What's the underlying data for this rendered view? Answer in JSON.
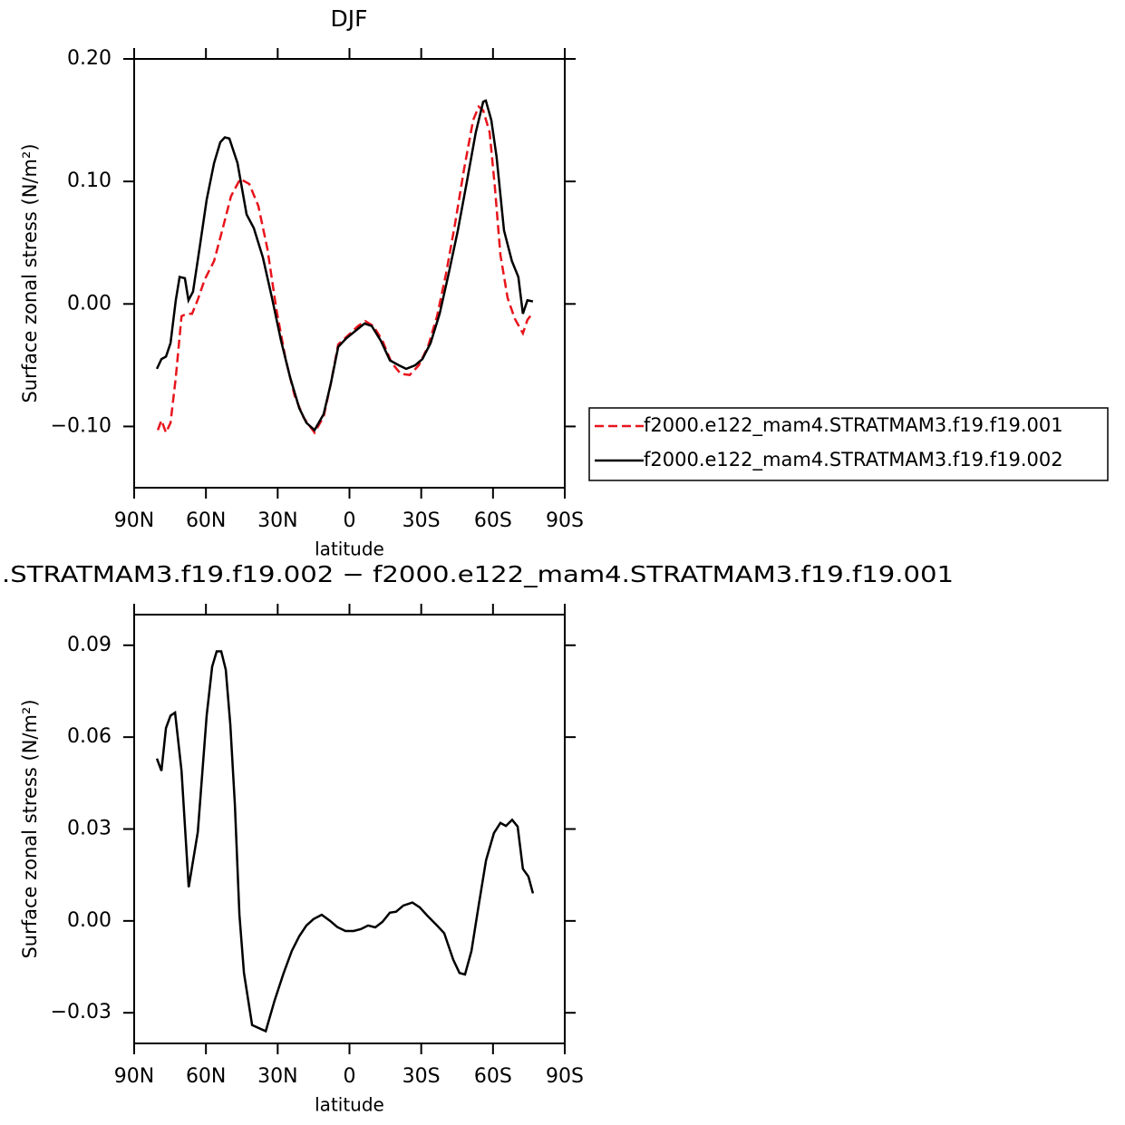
{
  "chart_data": [
    {
      "type": "line",
      "title": "DJF",
      "xlabel": "latitude",
      "ylabel": "Surface zonal stress (N/m²)",
      "xlim": [
        90,
        -90
      ],
      "xticks": [
        {
          "value": 90,
          "label": "90N"
        },
        {
          "value": 60,
          "label": "60N"
        },
        {
          "value": 30,
          "label": "30N"
        },
        0,
        {
          "value": -30,
          "label": "30S"
        },
        {
          "value": -60,
          "label": "60S"
        },
        {
          "value": -90,
          "label": "90S"
        }
      ],
      "ylim": [
        -0.15,
        0.2
      ],
      "yticks": [
        {
          "value": -0.1,
          "label": "−0.10"
        },
        {
          "value": 0,
          "label": "0.00"
        },
        {
          "value": 0.1,
          "label": "0.10"
        },
        {
          "value": 0.2,
          "label": "0.20"
        }
      ],
      "legend": "right",
      "series": [
        {
          "name": "f2000.e122_mam4.STRATMAM3.f19.f19.001",
          "color": "#e8141c",
          "line_style": "dashed",
          "x": [
            80.1,
            78.6,
            76.7,
            74.8,
            72.6,
            70.2,
            68,
            65.8,
            63.5,
            60.5,
            56.6,
            53.2,
            49.5,
            45.7,
            41.9,
            38.1,
            34.3,
            30.5,
            26.7,
            22.9,
            19.1,
            14.6,
            10.8,
            7.8,
            4.7,
            0.2,
            -3.6,
            -6.6,
            -10,
            -13.8,
            -17.6,
            -21.4,
            -25.2,
            -29,
            -32.8,
            -36.6,
            -40.4,
            -44.1,
            -47.9,
            -51.7,
            -54,
            -55.9,
            -58.6,
            -60.8,
            -63.1,
            -66.1,
            -69.1,
            -72.5,
            -74.4,
            -76.7
          ],
          "values": [
            -0.103,
            -0.095,
            -0.105,
            -0.097,
            -0.06,
            -0.01,
            -0.008,
            -0.008,
            0.003,
            0.02,
            0.035,
            0.06,
            0.088,
            0.102,
            0.098,
            0.08,
            0.045,
            -0.005,
            -0.045,
            -0.075,
            -0.093,
            -0.105,
            -0.092,
            -0.065,
            -0.033,
            -0.025,
            -0.018,
            -0.014,
            -0.018,
            -0.03,
            -0.048,
            -0.057,
            -0.058,
            -0.05,
            -0.035,
            -0.01,
            0.025,
            0.065,
            0.11,
            0.15,
            0.161,
            0.158,
            0.14,
            0.095,
            0.04,
            0.005,
            -0.012,
            -0.024,
            -0.013,
            -0.007
          ]
        },
        {
          "name": "f2000.e122_mam4.STRATMAM3.f19.f19.002",
          "color": "#000000",
          "line_style": "solid",
          "x": [
            80.5,
            78.6,
            76.7,
            74.8,
            72.6,
            71,
            68.8,
            67.3,
            65.4,
            62.7,
            59.7,
            56.6,
            54,
            52.1,
            50.2,
            46.8,
            43,
            40,
            36.2,
            32.4,
            28.6,
            24.8,
            21,
            18,
            14.6,
            10.8,
            7.8,
            4.7,
            1.3,
            -2.5,
            -6.3,
            -9.3,
            -13.1,
            -16.9,
            -20.6,
            -23.7,
            -27.5,
            -30.5,
            -33.9,
            -37.7,
            -41.5,
            -45.3,
            -49.1,
            -52.8,
            -55.9,
            -57,
            -59.3,
            -61.5,
            -64.6,
            -67.9,
            -70.6,
            -72.5,
            -74.4,
            -76.7
          ],
          "values": [
            -0.053,
            -0.045,
            -0.043,
            -0.032,
            0.003,
            0.022,
            0.021,
            0.003,
            0.01,
            0.045,
            0.085,
            0.115,
            0.132,
            0.136,
            0.135,
            0.115,
            0.073,
            0.062,
            0.038,
            0.005,
            -0.03,
            -0.06,
            -0.085,
            -0.097,
            -0.103,
            -0.09,
            -0.065,
            -0.035,
            -0.028,
            -0.022,
            -0.016,
            -0.018,
            -0.03,
            -0.046,
            -0.05,
            -0.053,
            -0.05,
            -0.045,
            -0.032,
            -0.008,
            0.025,
            0.06,
            0.1,
            0.14,
            0.165,
            0.166,
            0.15,
            0.12,
            0.06,
            0.035,
            0.022,
            -0.008,
            0.003,
            0.002
          ]
        }
      ]
    },
    {
      "type": "line",
      "title": ".STRATMAM3.f19.f19.002 − f2000.e122_mam4.STRATMAM3.f19.f19.001",
      "xlabel": "latitude",
      "ylabel": "Surface zonal stress (N/m²)",
      "xlim": [
        90,
        -90
      ],
      "xticks": [
        {
          "value": 90,
          "label": "90N"
        },
        {
          "value": 60,
          "label": "60N"
        },
        {
          "value": 30,
          "label": "30N"
        },
        0,
        {
          "value": -30,
          "label": "30S"
        },
        {
          "value": -60,
          "label": "60S"
        },
        {
          "value": -90,
          "label": "90S"
        }
      ],
      "ylim": [
        -0.04,
        0.1
      ],
      "yticks": [
        {
          "value": -0.03,
          "label": "−0.03"
        },
        {
          "value": 0,
          "label": "0.00"
        },
        0.03,
        0.06,
        0.09
      ],
      "series": [
        {
          "color": "#000000",
          "line_style": "solid",
          "x": [
            80.5,
            78.6,
            76.7,
            74.8,
            72.9,
            70.2,
            67.2,
            63.4,
            59.7,
            57.4,
            55.5,
            53.6,
            51.7,
            49.8,
            47.9,
            46,
            44.1,
            40.7,
            35,
            31.3,
            27.5,
            24.1,
            21,
            18,
            15,
            11.6,
            8.1,
            5.1,
            1.7,
            -1.7,
            -4.7,
            -7.8,
            -10.8,
            -13.8,
            -16.9,
            -19.5,
            -22.5,
            -26.3,
            -29.4,
            -32.8,
            -36.6,
            -39.6,
            -43.4,
            -46,
            -48.3,
            -51,
            -54,
            -57.1,
            -60.4,
            -63.1,
            -65.4,
            -68,
            -70.3,
            -72.5,
            -74.8,
            -76.7
          ],
          "values": [
            0.053,
            0.049,
            0.063,
            0.067,
            0.068,
            0.049,
            0.011,
            0.029,
            0.067,
            0.083,
            0.088,
            0.088,
            0.082,
            0.064,
            0.038,
            0.002,
            -0.017,
            -0.034,
            -0.036,
            -0.026,
            -0.017,
            -0.0098,
            -0.005,
            -0.0015,
            0.0006,
            0.002,
            0,
            -0.002,
            -0.0033,
            -0.0033,
            -0.0027,
            -0.0015,
            -0.0021,
            -0.0003,
            0.0027,
            0.003,
            0.005,
            0.006,
            0.0044,
            0.0015,
            -0.0015,
            -0.004,
            -0.0127,
            -0.017,
            -0.0175,
            -0.0098,
            0.005,
            0.0198,
            0.0287,
            0.032,
            0.031,
            0.033,
            0.0308,
            0.017,
            0.0145,
            0.009
          ]
        }
      ]
    }
  ]
}
